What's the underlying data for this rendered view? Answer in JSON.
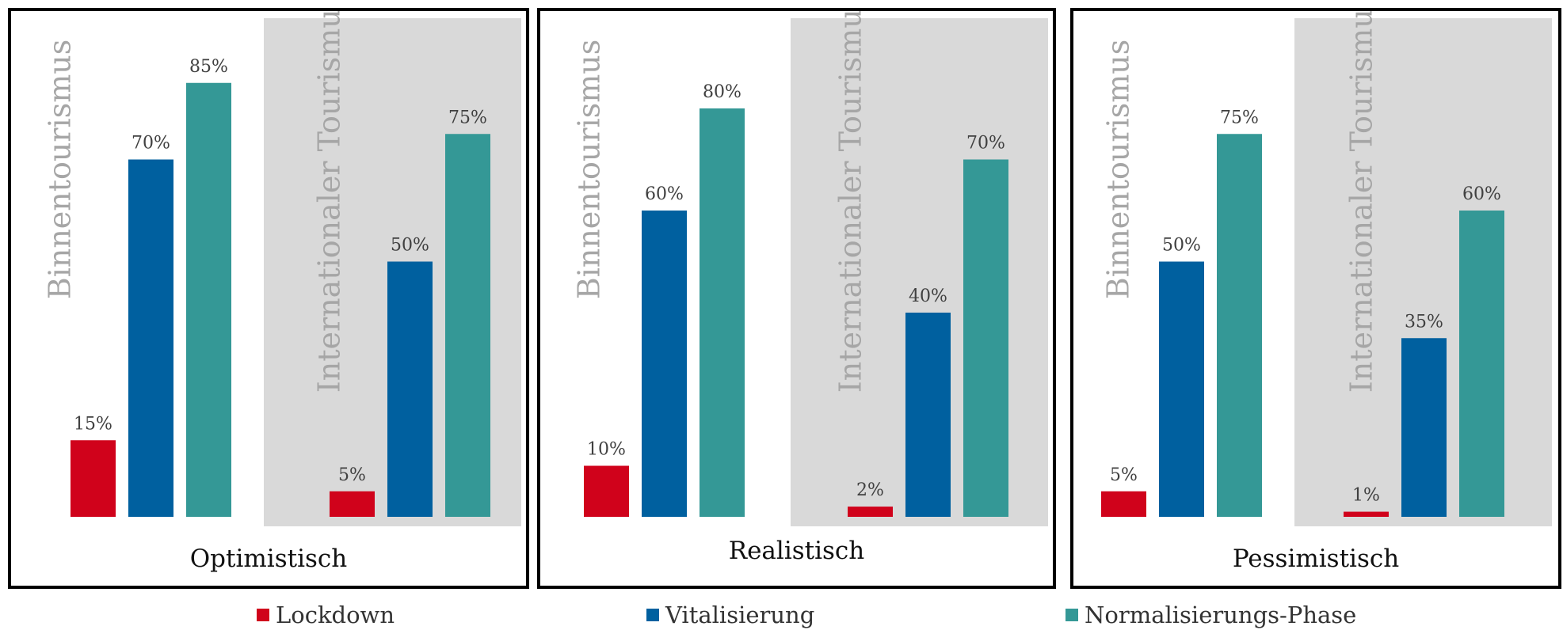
{
  "colors": {
    "lockdown": "#d0021b",
    "vitalisierung": "#00609f",
    "normalisierung": "#349896",
    "group_bg": "#d9d9d9",
    "group_title": "#a6a6a6",
    "value_label": "#404040"
  },
  "legend": [
    {
      "label": "Lockdown",
      "color": "#d0021b"
    },
    {
      "label": "Vitalisierung",
      "color": "#00609f"
    },
    {
      "label": "Normalisierungs-Phase",
      "color": "#349896"
    }
  ],
  "chart_data": [
    {
      "type": "bar",
      "title": "Optimistisch",
      "categories": [
        "Binnentourismus",
        "Internationaler Tourismus"
      ],
      "series": [
        {
          "name": "Lockdown",
          "values": [
            15,
            5
          ],
          "labels": [
            "15%",
            "5%"
          ]
        },
        {
          "name": "Vitalisierung",
          "values": [
            70,
            50
          ],
          "labels": [
            "70%",
            "50%"
          ]
        },
        {
          "name": "Normalisierungs-Phase",
          "values": [
            85,
            75
          ],
          "labels": [
            "85%",
            "75%"
          ]
        }
      ],
      "ylim": [
        0,
        100
      ],
      "grid": false
    },
    {
      "type": "bar",
      "title": "Realistisch",
      "categories": [
        "Binnentourismus",
        "Internationaler Tourismus"
      ],
      "series": [
        {
          "name": "Lockdown",
          "values": [
            10,
            2
          ],
          "labels": [
            "10%",
            "2%"
          ]
        },
        {
          "name": "Vitalisierung",
          "values": [
            60,
            40
          ],
          "labels": [
            "60%",
            "40%"
          ]
        },
        {
          "name": "Normalisierungs-Phase",
          "values": [
            80,
            70
          ],
          "labels": [
            "80%",
            "70%"
          ]
        }
      ],
      "ylim": [
        0,
        100
      ],
      "grid": false
    },
    {
      "type": "bar",
      "title": "Pessimistisch",
      "categories": [
        "Binnentourismus",
        "Internationaler Tourismus"
      ],
      "series": [
        {
          "name": "Lockdown",
          "values": [
            5,
            1
          ],
          "labels": [
            "5%",
            "1%"
          ]
        },
        {
          "name": "Vitalisierung",
          "values": [
            50,
            35
          ],
          "labels": [
            "50%",
            "35%"
          ]
        },
        {
          "name": "Normalisierungs-Phase",
          "values": [
            75,
            60
          ],
          "labels": [
            "75%",
            "60%"
          ]
        }
      ],
      "ylim": [
        0,
        100
      ],
      "grid": false
    }
  ]
}
